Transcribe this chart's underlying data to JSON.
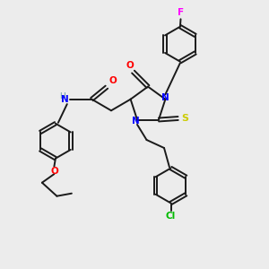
{
  "bg_color": "#ececec",
  "bond_color": "#1a1a1a",
  "colors": {
    "N": "#0000ff",
    "O": "#ff0000",
    "S": "#cccc00",
    "Cl": "#00bb00",
    "F": "#ff00ff",
    "H": "#6699aa"
  }
}
